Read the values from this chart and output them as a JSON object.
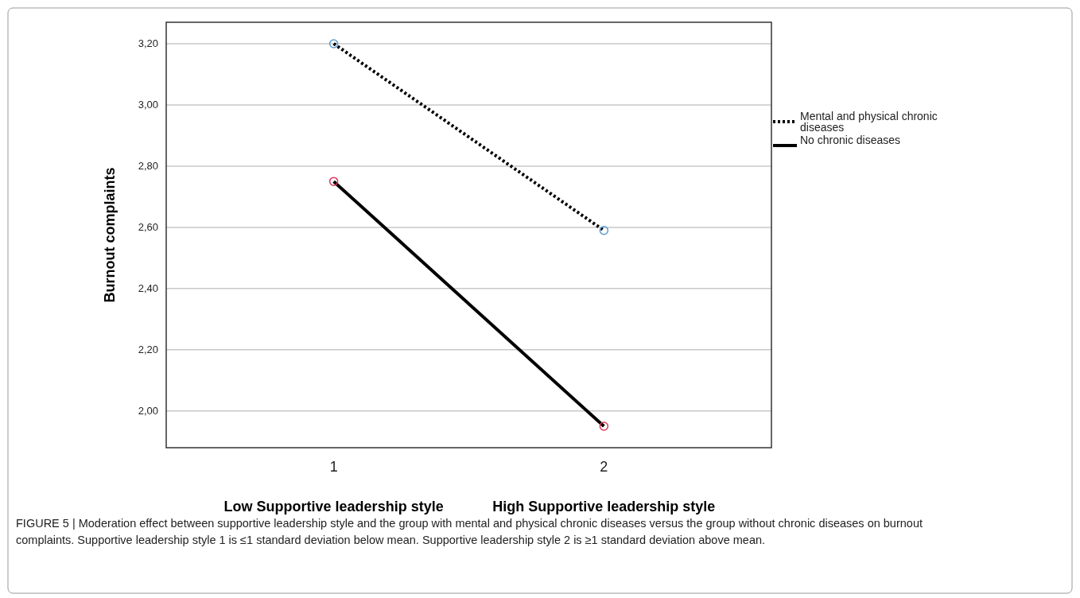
{
  "chart_data": {
    "type": "line",
    "ylabel": "Burnout complaints",
    "x": [
      1,
      2
    ],
    "xlim": [
      0.38,
      2.62
    ],
    "xticks": [
      1,
      2
    ],
    "ylim": [
      1.88,
      3.27
    ],
    "yticks": [
      {
        "value": 2,
        "label": "2,00"
      },
      {
        "value": 2.2,
        "label": "2,20"
      },
      {
        "value": 2.4,
        "label": "2,40"
      },
      {
        "value": 2.6,
        "label": "2,60"
      },
      {
        "value": 2.8,
        "label": "2,80"
      },
      {
        "value": 3,
        "label": "3,00"
      },
      {
        "value": 3.2,
        "label": "3,20"
      }
    ],
    "grid": "y",
    "legend": "right",
    "marker": "circle",
    "series": [
      {
        "name": "Mental and physical chronic diseases",
        "color": "#000000",
        "line_style": "dotted",
        "colors": [
          "#5b9bd5",
          "#5b9bd5"
        ],
        "values": [
          3.2,
          2.59
        ]
      },
      {
        "name": "No chronic diseases",
        "color": "#000000",
        "line_style": "solid",
        "colors": [
          "#e0345a",
          "#e0345a"
        ],
        "values": [
          2.75,
          1.95
        ]
      }
    ],
    "annotations": [
      "Low Supportive leadership style",
      "High Supportive leadership style",
      "FIGURE 5 | Moderation effect between supportive leadership style and the group with mental and physical chronic diseases versus the group without chronic diseases on burnout complaints. Supportive leadership style 1 is ≤1 standard deviation below mean. Supportive leadership style 2 is ≥1 standard deviation above mean."
    ]
  }
}
